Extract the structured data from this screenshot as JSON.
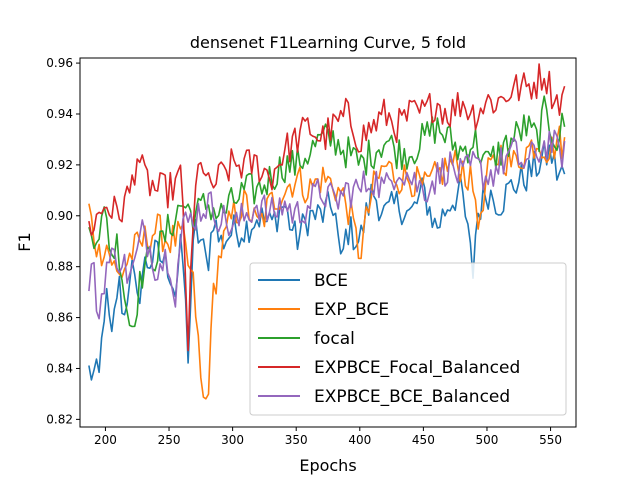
{
  "chart_data": {
    "type": "line",
    "title": "densenet F1Learning Curve, 5 fold",
    "xlabel": "Epochs",
    "ylabel": "F1",
    "xlim": [
      180,
      570
    ],
    "ylim": [
      0.817,
      0.962
    ],
    "xticks": [
      200,
      250,
      300,
      350,
      400,
      450,
      500,
      550
    ],
    "yticks": [
      0.82,
      0.84,
      0.86,
      0.88,
      0.9,
      0.92,
      0.94,
      0.96
    ],
    "xtick_labels": [
      "200",
      "250",
      "300",
      "350",
      "400",
      "450",
      "500",
      "550"
    ],
    "ytick_labels": [
      "0.82",
      "0.84",
      "0.86",
      "0.88",
      "0.90",
      "0.92",
      "0.94",
      "0.96"
    ],
    "grid": false,
    "legend_position": "lower-right",
    "x_start": 187,
    "x_end": 561,
    "series": [
      {
        "name": "BCE",
        "color": "#1f77b4",
        "x": [
          187,
          195,
          200,
          205,
          210,
          215,
          220,
          225,
          230,
          240,
          250,
          255,
          260,
          265,
          270,
          275,
          280,
          285,
          290,
          300,
          310,
          320,
          330,
          340,
          350,
          360,
          370,
          380,
          385,
          390,
          400,
          410,
          420,
          430,
          440,
          450,
          460,
          470,
          480,
          489,
          492,
          500,
          510,
          520,
          530,
          540,
          550,
          555,
          561
        ],
        "values": [
          0.839,
          0.836,
          0.87,
          0.85,
          0.875,
          0.86,
          0.882,
          0.865,
          0.88,
          0.885,
          0.88,
          0.87,
          0.89,
          0.846,
          0.895,
          0.89,
          0.88,
          0.9,
          0.889,
          0.894,
          0.895,
          0.9,
          0.896,
          0.905,
          0.89,
          0.9,
          0.9,
          0.905,
          0.88,
          0.895,
          0.89,
          0.91,
          0.9,
          0.905,
          0.9,
          0.91,
          0.895,
          0.905,
          0.91,
          0.878,
          0.9,
          0.91,
          0.905,
          0.912,
          0.915,
          0.92,
          0.925,
          0.917,
          0.916
        ]
      },
      {
        "name": "EXP_BCE",
        "color": "#ff7f0e",
        "x": [
          187,
          190,
          195,
          200,
          210,
          220,
          230,
          240,
          250,
          260,
          270,
          275,
          278,
          282,
          285,
          290,
          300,
          310,
          320,
          330,
          340,
          350,
          360,
          370,
          380,
          390,
          400,
          410,
          420,
          430,
          440,
          450,
          460,
          470,
          480,
          490,
          495,
          500,
          510,
          520,
          530,
          540,
          550,
          555,
          561
        ],
        "values": [
          0.902,
          0.895,
          0.885,
          0.89,
          0.875,
          0.885,
          0.89,
          0.895,
          0.89,
          0.892,
          0.87,
          0.835,
          0.823,
          0.84,
          0.87,
          0.885,
          0.9,
          0.905,
          0.895,
          0.905,
          0.91,
          0.915,
          0.91,
          0.915,
          0.912,
          0.905,
          0.885,
          0.91,
          0.92,
          0.915,
          0.915,
          0.91,
          0.915,
          0.92,
          0.92,
          0.91,
          0.895,
          0.915,
          0.925,
          0.92,
          0.925,
          0.93,
          0.925,
          0.93,
          0.928
        ]
      },
      {
        "name": "focal",
        "color": "#2ca02c",
        "x": [
          187,
          195,
          200,
          205,
          210,
          215,
          220,
          230,
          240,
          250,
          260,
          270,
          280,
          290,
          300,
          310,
          320,
          330,
          340,
          350,
          360,
          370,
          380,
          390,
          400,
          410,
          420,
          430,
          440,
          450,
          460,
          470,
          480,
          490,
          500,
          510,
          520,
          530,
          540,
          545,
          550,
          555,
          561
        ],
        "values": [
          0.893,
          0.895,
          0.9,
          0.885,
          0.89,
          0.87,
          0.855,
          0.88,
          0.885,
          0.895,
          0.905,
          0.9,
          0.905,
          0.9,
          0.905,
          0.91,
          0.91,
          0.915,
          0.92,
          0.92,
          0.925,
          0.93,
          0.93,
          0.925,
          0.92,
          0.925,
          0.93,
          0.925,
          0.925,
          0.93,
          0.935,
          0.93,
          0.925,
          0.93,
          0.92,
          0.925,
          0.93,
          0.935,
          0.93,
          0.94,
          0.935,
          0.93,
          0.937
        ]
      },
      {
        "name": "EXPBCE_Focal_Balanced",
        "color": "#d62728",
        "x": [
          187,
          195,
          200,
          210,
          220,
          225,
          230,
          240,
          250,
          260,
          265,
          270,
          275,
          280,
          290,
          300,
          310,
          320,
          330,
          340,
          350,
          360,
          370,
          380,
          390,
          400,
          410,
          420,
          430,
          440,
          450,
          460,
          470,
          480,
          490,
          500,
          510,
          520,
          530,
          540,
          545,
          550,
          555,
          561
        ],
        "values": [
          0.895,
          0.9,
          0.905,
          0.9,
          0.91,
          0.925,
          0.915,
          0.91,
          0.91,
          0.915,
          0.85,
          0.905,
          0.925,
          0.91,
          0.915,
          0.92,
          0.92,
          0.92,
          0.915,
          0.925,
          0.93,
          0.935,
          0.93,
          0.935,
          0.94,
          0.93,
          0.935,
          0.94,
          0.935,
          0.94,
          0.94,
          0.945,
          0.94,
          0.945,
          0.94,
          0.945,
          0.945,
          0.95,
          0.95,
          0.953,
          0.957,
          0.95,
          0.945,
          0.947
        ]
      },
      {
        "name": "EXPBCE_BCE_Balanced",
        "color": "#9467bd",
        "x": [
          187,
          190,
          195,
          200,
          210,
          220,
          230,
          240,
          250,
          255,
          260,
          270,
          280,
          290,
          300,
          310,
          320,
          330,
          340,
          350,
          360,
          370,
          380,
          390,
          400,
          410,
          420,
          430,
          440,
          450,
          460,
          470,
          480,
          490,
          500,
          510,
          520,
          530,
          540,
          550,
          555,
          561
        ],
        "values": [
          0.875,
          0.88,
          0.86,
          0.88,
          0.885,
          0.875,
          0.895,
          0.88,
          0.885,
          0.87,
          0.895,
          0.9,
          0.905,
          0.9,
          0.895,
          0.9,
          0.905,
          0.9,
          0.905,
          0.9,
          0.905,
          0.91,
          0.905,
          0.91,
          0.91,
          0.915,
          0.91,
          0.92,
          0.915,
          0.91,
          0.915,
          0.92,
          0.915,
          0.92,
          0.915,
          0.92,
          0.925,
          0.92,
          0.925,
          0.93,
          0.925,
          0.925
        ]
      }
    ]
  }
}
